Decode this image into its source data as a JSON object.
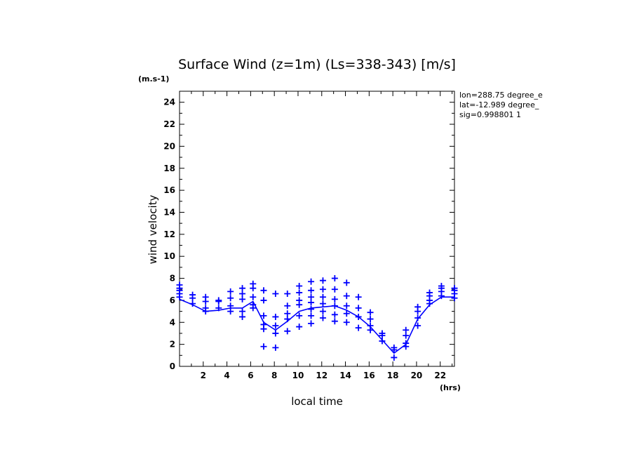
{
  "chart_data": {
    "type": "scatter",
    "title": "Surface Wind (z=1m) (Ls=338-343) [m/s]",
    "units_label": "(m.s-1)",
    "xlabel": "local time",
    "x_units_label": "(hrs)",
    "ylabel": "wind velocity",
    "xlim": [
      0,
      23.2
    ],
    "ylim": [
      0,
      25
    ],
    "x_ticks": [
      2,
      4,
      6,
      8,
      10,
      12,
      14,
      16,
      18,
      20,
      22
    ],
    "y_ticks": [
      0,
      2,
      4,
      6,
      8,
      10,
      12,
      14,
      16,
      18,
      20,
      22,
      24
    ],
    "info_lines": [
      "lon=288.75 degree_e",
      "lat=-12.989 degree_",
      "sig=0.998801 1"
    ],
    "color": "#0000ff",
    "series": [
      {
        "mode": "line",
        "x": [
          0.0,
          1.1,
          2.2,
          3.3,
          4.3,
          5.3,
          6.2,
          7.1,
          8.1,
          9.1,
          10.1,
          11.1,
          12.1,
          13.1,
          14.1,
          15.1,
          16.1,
          17.1,
          18.1,
          19.1,
          20.1,
          21.1,
          22.1,
          23.2
        ],
        "y": [
          6.1,
          5.6,
          5.0,
          5.1,
          5.3,
          5.3,
          5.9,
          4.0,
          3.3,
          4.1,
          5.0,
          5.3,
          5.4,
          5.5,
          5.1,
          4.5,
          3.6,
          2.4,
          1.2,
          2.0,
          4.3,
          5.6,
          6.3,
          6.3
        ]
      },
      {
        "mode": "markers",
        "marker": "+",
        "points": [
          [
            0.0,
            6.9
          ],
          [
            0.0,
            7.1
          ],
          [
            0.0,
            6.6
          ],
          [
            0.0,
            6.3
          ],
          [
            0.0,
            7.4
          ],
          [
            1.1,
            6.2
          ],
          [
            1.1,
            6.5
          ],
          [
            1.1,
            5.7
          ],
          [
            2.2,
            5.3
          ],
          [
            2.2,
            5.9
          ],
          [
            2.2,
            6.3
          ],
          [
            2.2,
            5.0
          ],
          [
            3.3,
            5.9
          ],
          [
            3.3,
            6.0
          ],
          [
            3.3,
            5.3
          ],
          [
            4.3,
            5.5
          ],
          [
            4.3,
            6.2
          ],
          [
            4.3,
            6.8
          ],
          [
            4.3,
            5.0
          ],
          [
            5.3,
            6.1
          ],
          [
            5.3,
            6.6
          ],
          [
            5.3,
            7.1
          ],
          [
            5.3,
            5.0
          ],
          [
            5.3,
            4.5
          ],
          [
            6.2,
            7.5
          ],
          [
            6.2,
            7.1
          ],
          [
            6.2,
            6.3
          ],
          [
            6.2,
            5.6
          ],
          [
            6.2,
            5.3
          ],
          [
            7.1,
            6.9
          ],
          [
            7.1,
            6.0
          ],
          [
            7.1,
            4.6
          ],
          [
            7.1,
            3.8
          ],
          [
            7.1,
            3.4
          ],
          [
            7.1,
            1.8
          ],
          [
            8.1,
            6.6
          ],
          [
            8.1,
            4.5
          ],
          [
            8.1,
            3.7
          ],
          [
            8.1,
            3.0
          ],
          [
            8.1,
            1.7
          ],
          [
            9.1,
            6.6
          ],
          [
            9.1,
            5.5
          ],
          [
            9.1,
            4.8
          ],
          [
            9.1,
            4.3
          ],
          [
            9.1,
            3.2
          ],
          [
            10.1,
            7.3
          ],
          [
            10.1,
            6.7
          ],
          [
            10.1,
            6.0
          ],
          [
            10.1,
            5.6
          ],
          [
            10.1,
            4.6
          ],
          [
            10.1,
            3.6
          ],
          [
            11.1,
            7.7
          ],
          [
            11.1,
            6.9
          ],
          [
            11.1,
            6.3
          ],
          [
            11.1,
            5.8
          ],
          [
            11.1,
            5.2
          ],
          [
            11.1,
            4.6
          ],
          [
            11.1,
            3.9
          ],
          [
            12.1,
            7.8
          ],
          [
            12.1,
            7.0
          ],
          [
            12.1,
            6.3
          ],
          [
            12.1,
            5.7
          ],
          [
            12.1,
            5.0
          ],
          [
            12.1,
            4.4
          ],
          [
            13.1,
            8.0
          ],
          [
            13.1,
            7.0
          ],
          [
            13.1,
            6.1
          ],
          [
            13.1,
            5.5
          ],
          [
            13.1,
            4.7
          ],
          [
            13.1,
            4.1
          ],
          [
            14.1,
            7.6
          ],
          [
            14.1,
            6.4
          ],
          [
            14.1,
            5.5
          ],
          [
            14.1,
            4.8
          ],
          [
            14.1,
            4.0
          ],
          [
            15.1,
            6.3
          ],
          [
            15.1,
            5.3
          ],
          [
            15.1,
            4.5
          ],
          [
            15.1,
            3.5
          ],
          [
            16.1,
            4.9
          ],
          [
            16.1,
            4.3
          ],
          [
            16.1,
            3.7
          ],
          [
            16.1,
            3.3
          ],
          [
            17.1,
            3.0
          ],
          [
            17.1,
            2.8
          ],
          [
            17.1,
            2.3
          ],
          [
            18.1,
            1.7
          ],
          [
            18.1,
            1.5
          ],
          [
            18.1,
            0.8
          ],
          [
            19.1,
            3.3
          ],
          [
            19.1,
            2.8
          ],
          [
            19.1,
            2.1
          ],
          [
            19.1,
            1.8
          ],
          [
            20.1,
            5.4
          ],
          [
            20.1,
            5.0
          ],
          [
            20.1,
            4.4
          ],
          [
            20.1,
            3.7
          ],
          [
            21.1,
            6.7
          ],
          [
            21.1,
            6.4
          ],
          [
            21.1,
            6.0
          ],
          [
            21.1,
            5.7
          ],
          [
            22.1,
            7.3
          ],
          [
            22.1,
            7.1
          ],
          [
            22.1,
            6.8
          ],
          [
            22.1,
            6.4
          ],
          [
            23.2,
            7.1
          ],
          [
            23.2,
            6.9
          ],
          [
            23.2,
            6.6
          ],
          [
            23.2,
            6.2
          ]
        ]
      }
    ]
  }
}
